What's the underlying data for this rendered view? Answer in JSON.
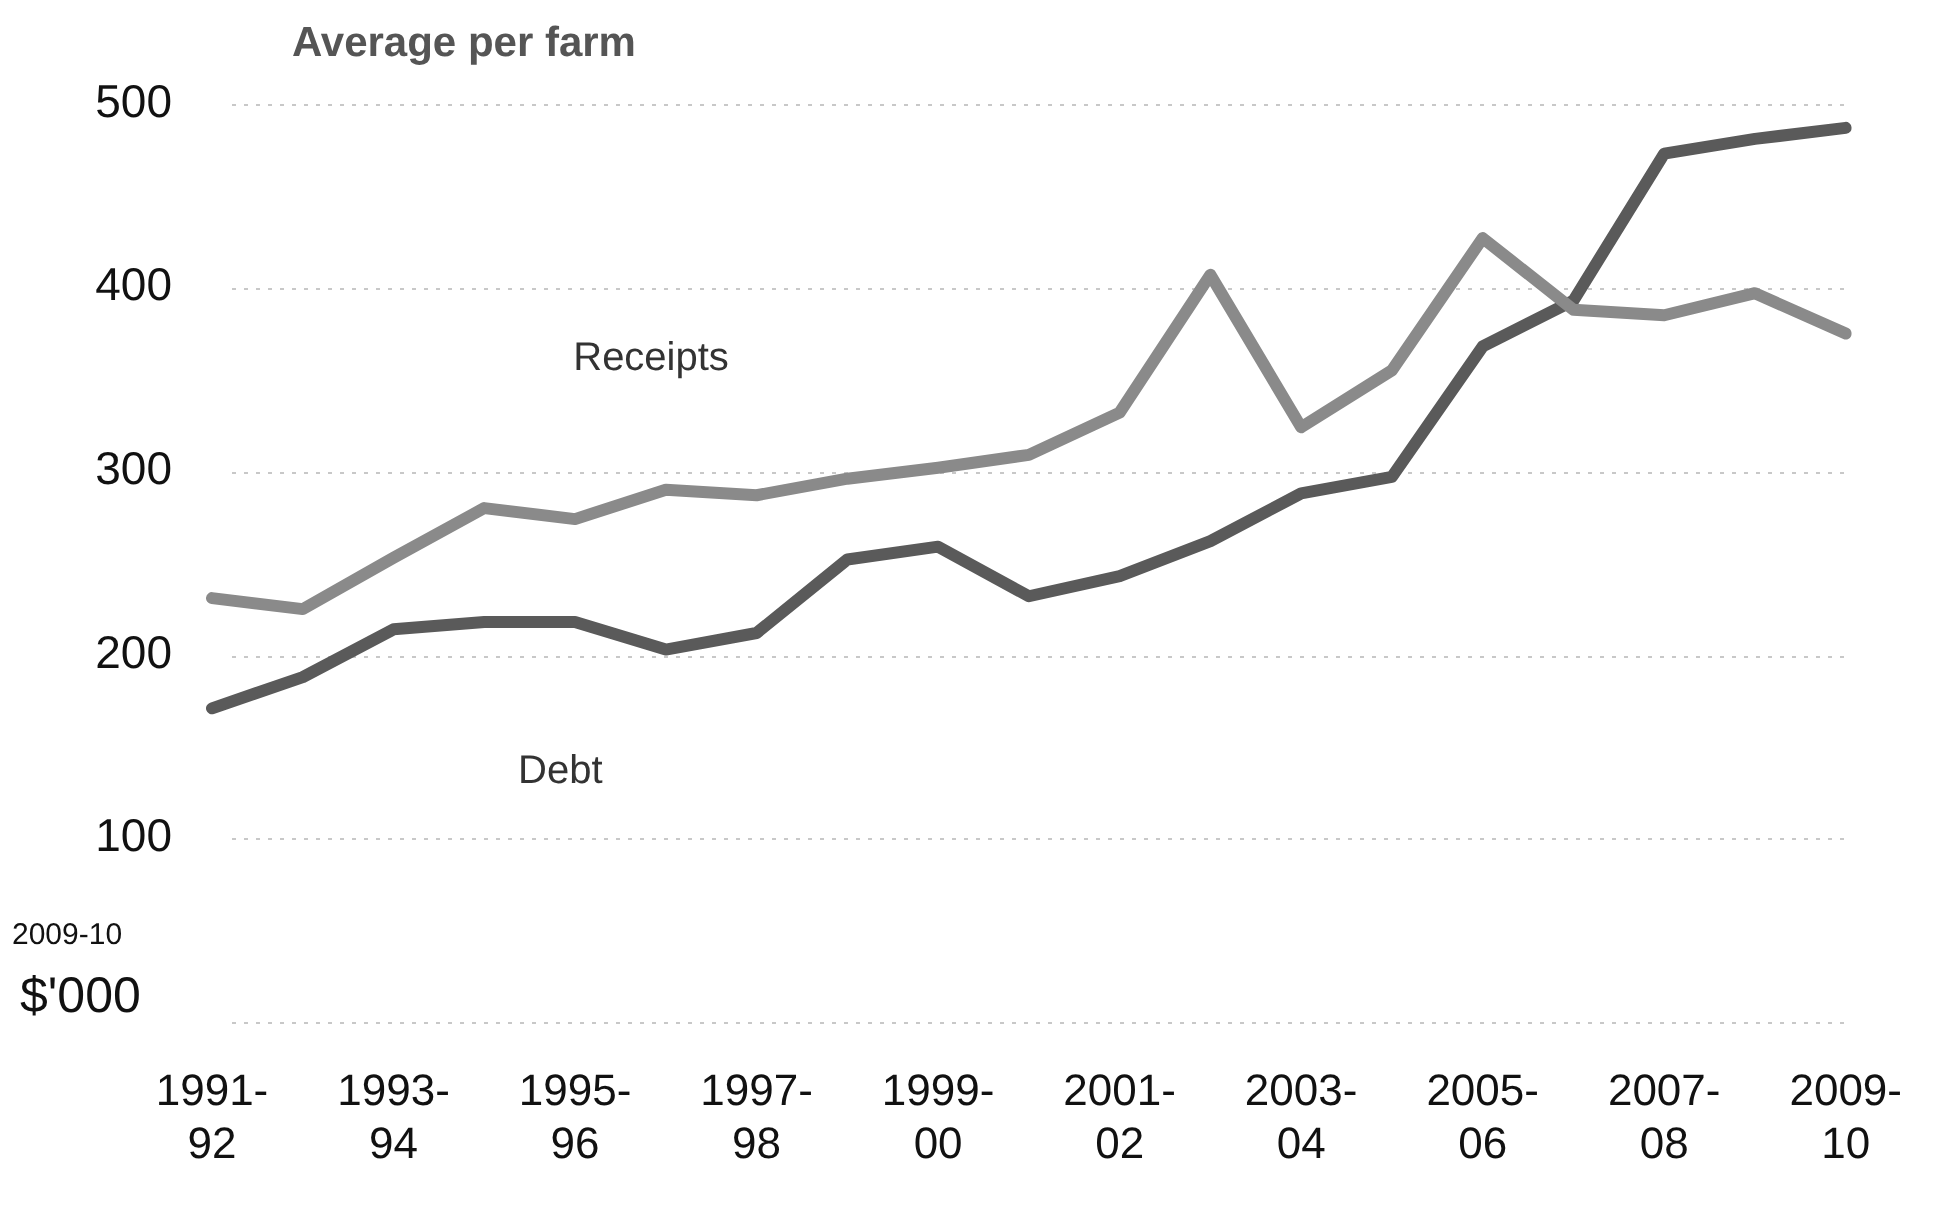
{
  "chart_data": {
    "type": "line",
    "title": "Average per farm",
    "ylabel": "2009-10 $'000",
    "categories": [
      "1991-92",
      null,
      "1993-94",
      null,
      "1995-96",
      null,
      "1997-98",
      null,
      "1999-00",
      null,
      "2001-02",
      null,
      "2003-04",
      null,
      "2005-06",
      null,
      "2007-08",
      null,
      "2009-10"
    ],
    "series": [
      {
        "name": "Receipts",
        "color": "#8a8a8a",
        "values": [
          231,
          225,
          253,
          280,
          274,
          290,
          287,
          296,
          302,
          309,
          332,
          407,
          324,
          355,
          427,
          388,
          385,
          397,
          375
        ]
      },
      {
        "name": "Debt",
        "color": "#5a5a5a",
        "values": [
          171,
          188,
          214,
          218,
          218,
          203,
          212,
          252,
          259,
          232,
          243,
          262,
          288,
          297,
          368,
          393,
          473,
          481,
          487
        ]
      }
    ],
    "ylim": [
      0,
      500
    ],
    "yticks": [
      {
        "value": 0,
        "label": null
      },
      100,
      200,
      300,
      400,
      500
    ],
    "grid": "y",
    "legend": false,
    "marker": "none",
    "line_style": "solid"
  }
}
